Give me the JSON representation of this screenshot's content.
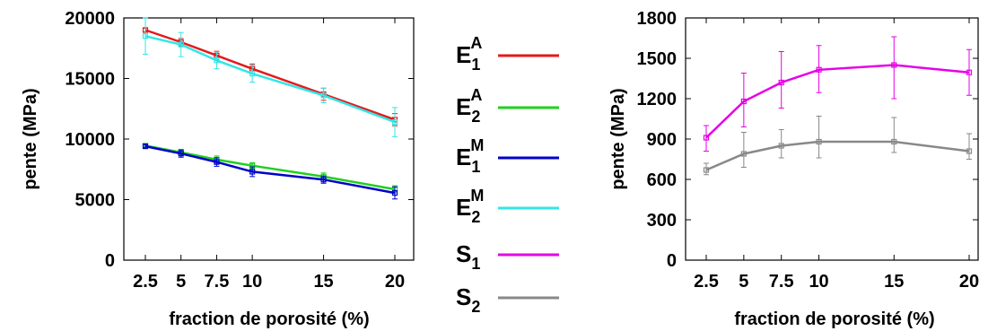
{
  "chart_data": [
    {
      "type": "line",
      "xlabel": "fraction de porosité (%)",
      "ylabel": "pente (MPa)",
      "ylim": [
        0,
        20000
      ],
      "yticks": [
        0,
        5000,
        10000,
        15000,
        20000
      ],
      "xticks": [
        2.5,
        5,
        7.5,
        10,
        15,
        20
      ],
      "xtick_labels": [
        "2.5",
        "5",
        "7.5",
        "10",
        "15",
        "20"
      ],
      "grid": false,
      "x": [
        2.5,
        5,
        7.5,
        10,
        15,
        20
      ],
      "series": [
        {
          "key": "E1A",
          "color": "#e41a1c",
          "values": [
            19000,
            18000,
            16900,
            15800,
            13700,
            11600
          ],
          "err": [
            150,
            300,
            350,
            400,
            500,
            500
          ]
        },
        {
          "key": "E2M",
          "color": "#33e6e6",
          "values": [
            18500,
            17800,
            16500,
            15400,
            13600,
            11400
          ],
          "err": [
            1500,
            1000,
            700,
            700,
            600,
            1200
          ]
        },
        {
          "key": "E2A",
          "color": "#1fd11f",
          "values": [
            9450,
            8900,
            8300,
            7800,
            6900,
            5850
          ],
          "err": [
            100,
            250,
            300,
            250,
            300,
            300
          ]
        },
        {
          "key": "E1M",
          "color": "#0000cc",
          "values": [
            9400,
            8800,
            8100,
            7300,
            6650,
            5550
          ],
          "err": [
            100,
            300,
            350,
            400,
            300,
            500
          ]
        }
      ]
    },
    {
      "type": "line",
      "xlabel": "fraction de porosité (%)",
      "ylabel": "pente (MPa)",
      "ylim": [
        0,
        1800
      ],
      "yticks": [
        0,
        300,
        600,
        900,
        1200,
        1500,
        1800
      ],
      "xticks": [
        2.5,
        5,
        7.5,
        10,
        15,
        20
      ],
      "xtick_labels": [
        "2.5",
        "5",
        "7.5",
        "10",
        "15",
        "20"
      ],
      "grid": false,
      "x": [
        2.5,
        5,
        7.5,
        10,
        15,
        20
      ],
      "series": [
        {
          "key": "S1",
          "color": "#e600e6",
          "values": [
            910,
            1180,
            1320,
            1415,
            1450,
            1395
          ],
          "err_low": [
            100,
            190,
            190,
            170,
            250,
            170
          ],
          "err_high": [
            90,
            210,
            230,
            180,
            210,
            170
          ]
        },
        {
          "key": "S2",
          "color": "#888888",
          "values": [
            670,
            790,
            850,
            880,
            880,
            810
          ],
          "err_low": [
            35,
            100,
            90,
            120,
            80,
            60
          ],
          "err_high": [
            50,
            160,
            120,
            190,
            180,
            130
          ]
        }
      ]
    }
  ],
  "legend": {
    "placement": "center",
    "entries": [
      {
        "base": "E",
        "sub": "1",
        "sup": "A",
        "color": "#e41a1c"
      },
      {
        "base": "E",
        "sub": "2",
        "sup": "A",
        "color": "#1fd11f"
      },
      {
        "base": "E",
        "sub": "1",
        "sup": "M",
        "color": "#0000cc"
      },
      {
        "base": "E",
        "sub": "2",
        "sup": "M",
        "color": "#33e6e6"
      },
      {
        "base": "S",
        "sub": "1",
        "sup": "",
        "color": "#e600e6"
      },
      {
        "base": "S",
        "sub": "2",
        "sup": "",
        "color": "#888888"
      }
    ]
  }
}
